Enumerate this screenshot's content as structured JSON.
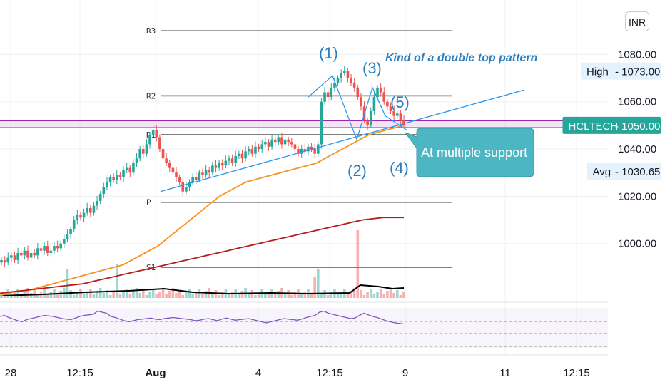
{
  "symbol": "HCLTECH",
  "currency": "INR",
  "price_labels": {
    "high": {
      "label": "High",
      "value": "1073.00"
    },
    "last": {
      "label": "HCLTECH",
      "value": "1050.00"
    },
    "avg": {
      "label": "Avg",
      "value": "1030.65"
    }
  },
  "colors": {
    "bull": "#26a69a",
    "bear": "#ef5350",
    "ema_fast": "#f7931e",
    "ema_slow": "#b71c1c",
    "trendline": "#2196f3",
    "pivot": "#000000",
    "support_zone": "#9c27b0",
    "rsi": "#7e57c2",
    "callout": "#4db6c3"
  },
  "annotations": {
    "title": "Kind of a double top pattern",
    "callout": "At multiple support",
    "waves": [
      "(1)",
      "(2)",
      "(3)",
      "(4)",
      "(5)"
    ]
  },
  "chart_data": {
    "type": "candlestick",
    "y_axis": {
      "ticks": [
        "1080.00",
        "1060.00",
        "1040.00",
        "1020.00",
        "1000.00"
      ],
      "range": [
        977,
        1097
      ]
    },
    "x_axis": {
      "ticks": [
        "28",
        "12:15",
        "Aug",
        "4",
        "12:15",
        "9",
        "11",
        "12:15"
      ]
    },
    "pivot_levels": [
      {
        "label": "R3",
        "value": 1090
      },
      {
        "label": "R2",
        "value": 1062.5
      },
      {
        "label": "R1",
        "value": 1046
      },
      {
        "label": "P",
        "value": 1017.5
      },
      {
        "label": "S1",
        "value": 990
      }
    ],
    "support_zone": [
      1049,
      1052
    ],
    "series_close": [
      993,
      992,
      994,
      995,
      993,
      996,
      995,
      997,
      994,
      996,
      995,
      998,
      997,
      999,
      996,
      997,
      999,
      998,
      1000,
      1002,
      1004,
      1006,
      1010,
      1012,
      1011,
      1013,
      1015,
      1013,
      1016,
      1018,
      1021,
      1024,
      1026,
      1028,
      1027,
      1029,
      1028,
      1031,
      1032,
      1030,
      1034,
      1036,
      1040,
      1038,
      1042,
      1046,
      1048,
      1045,
      1040,
      1036,
      1034,
      1032,
      1030,
      1028,
      1026,
      1022,
      1024,
      1026,
      1028,
      1027,
      1030,
      1029,
      1031,
      1030,
      1033,
      1032,
      1034,
      1033,
      1035,
      1036,
      1034,
      1037,
      1038,
      1036,
      1039,
      1040,
      1038,
      1041,
      1040,
      1042,
      1043,
      1041,
      1044,
      1043,
      1045,
      1042,
      1044,
      1043,
      1042,
      1040,
      1038,
      1040,
      1039,
      1041,
      1040,
      1038,
      1042,
      1060,
      1064,
      1062,
      1066,
      1068,
      1070,
      1072,
      1073,
      1070,
      1068,
      1066,
      1062,
      1058,
      1052,
      1050,
      1056,
      1062,
      1066,
      1064,
      1060,
      1058,
      1056,
      1054,
      1055,
      1052,
      1050
    ],
    "ema_fast": [
      978,
      979,
      980,
      980,
      981,
      982,
      983,
      984,
      985,
      986,
      987,
      988,
      989,
      990,
      991,
      993,
      995,
      997,
      999,
      1002,
      1005,
      1008,
      1011,
      1014,
      1017,
      1020,
      1022,
      1024,
      1026,
      1027,
      1028,
      1029,
      1030,
      1031,
      1032,
      1033,
      1034,
      1036,
      1038,
      1040,
      1042,
      1044,
      1046,
      1047,
      1048,
      1049,
      1050
    ],
    "ema_slow": [
      979,
      979.5,
      980,
      980.5,
      981,
      981.5,
      982,
      982.5,
      983,
      984,
      985,
      986,
      987,
      988,
      989,
      990,
      991,
      992,
      993,
      994,
      995,
      996,
      997,
      998,
      999,
      1000,
      1001,
      1002,
      1003,
      1004,
      1005,
      1006,
      1007,
      1008,
      1009,
      1010,
      1010.5,
      1011,
      1011,
      1011
    ],
    "rsi": [
      60,
      62,
      58,
      55,
      52,
      50,
      54,
      56,
      58,
      60,
      62,
      61,
      60,
      58,
      56,
      55,
      54,
      57,
      60,
      62,
      63,
      64,
      70,
      68,
      66,
      60,
      58,
      55,
      52,
      50,
      52,
      54,
      55,
      56,
      57,
      55,
      54,
      56,
      57,
      58,
      57,
      56,
      55,
      54,
      52,
      53,
      55,
      56,
      54,
      52,
      55,
      57,
      55,
      53,
      54,
      55,
      56,
      54,
      52,
      50,
      48,
      50,
      52,
      54,
      56,
      55,
      54,
      53,
      55,
      58,
      60,
      62,
      68,
      70,
      66,
      64,
      62,
      60,
      58,
      56,
      57,
      62,
      66,
      63,
      60,
      58,
      55,
      52,
      50,
      48,
      47,
      46
    ]
  }
}
